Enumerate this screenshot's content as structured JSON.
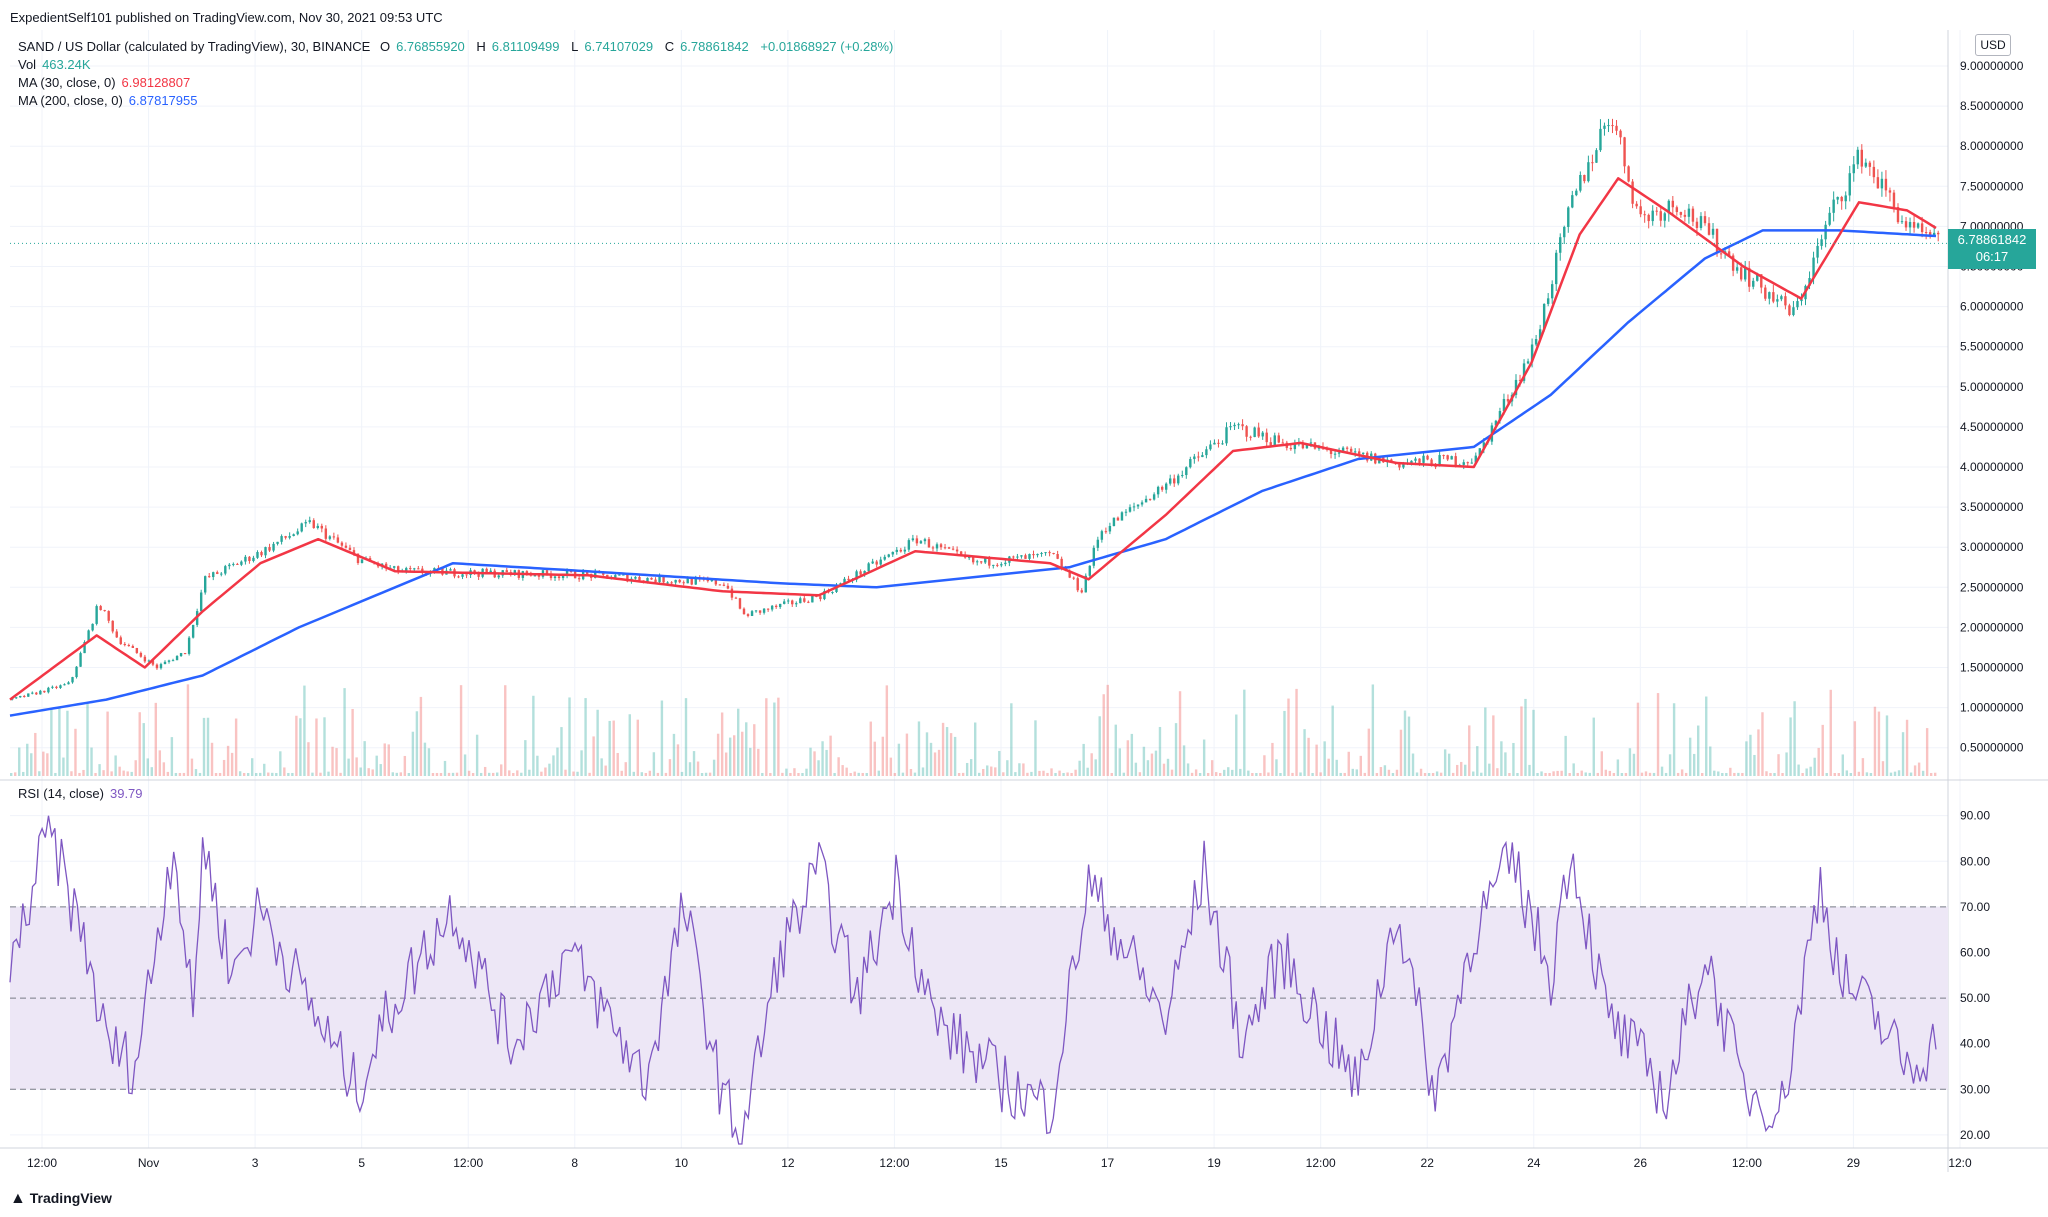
{
  "header": {
    "publisher": "ExpedientSelf101 published on TradingView.com, Nov 30, 2021 09:53 UTC"
  },
  "legend": {
    "symbol": "SAND / US Dollar (calculated by TradingView), 30, BINANCE",
    "open_label": "O",
    "open": "6.76855920",
    "high_label": "H",
    "high": "6.81109499",
    "low_label": "L",
    "low": "6.74107029",
    "close_label": "C",
    "close": "6.78861842",
    "change": "+0.01868927 (+0.28%)",
    "vol_label": "Vol",
    "vol": "463.24K",
    "ma30_label": "MA (30, close, 0)",
    "ma30": "6.98128807",
    "ma200_label": "MA (200, close, 0)",
    "ma200": "6.87817955",
    "rsi_label": "RSI (14, close)",
    "rsi": "39.79"
  },
  "currency": "USD",
  "last_price": {
    "value": "6.78861842",
    "countdown": "06:17"
  },
  "branding": "TradingView",
  "colors": {
    "up": "#26a69a",
    "down": "#ef5350",
    "ma30": "#f23645",
    "ma200": "#2962ff",
    "rsi": "#7e57c2",
    "rsi_band": "#ede7f6",
    "grid": "#f0f3fa"
  },
  "chart_data": [
    {
      "type": "candlestick",
      "title": "SAND / US Dollar (calculated by TradingView), 30, BINANCE",
      "y_ticks": [
        "9.00000000",
        "8.50000000",
        "8.00000000",
        "7.50000000",
        "7.00000000",
        "6.50000000",
        "6.00000000",
        "5.50000000",
        "5.00000000",
        "4.50000000",
        "4.00000000",
        "3.50000000",
        "3.00000000",
        "2.50000000",
        "2.00000000",
        "1.50000000",
        "1.00000000",
        "0.50000000"
      ],
      "ylim": [
        0.5,
        9.0
      ],
      "x_ticks": [
        "12:00",
        "Nov",
        "3",
        "5",
        "12:00",
        "8",
        "10",
        "12",
        "12:00",
        "15",
        "17",
        "19",
        "12:00",
        "22",
        "24",
        "26",
        "12:00",
        "29",
        "12:0"
      ],
      "price_path": [
        [
          0,
          1.1
        ],
        [
          0.03,
          1.3
        ],
        [
          0.045,
          2.3
        ],
        [
          0.055,
          1.85
        ],
        [
          0.075,
          1.5
        ],
        [
          0.09,
          1.7
        ],
        [
          0.1,
          2.6
        ],
        [
          0.13,
          2.95
        ],
        [
          0.155,
          3.3
        ],
        [
          0.18,
          2.85
        ],
        [
          0.2,
          2.7
        ],
        [
          0.3,
          2.65
        ],
        [
          0.37,
          2.55
        ],
        [
          0.38,
          2.15
        ],
        [
          0.42,
          2.4
        ],
        [
          0.47,
          3.1
        ],
        [
          0.5,
          2.8
        ],
        [
          0.54,
          2.9
        ],
        [
          0.555,
          2.45
        ],
        [
          0.565,
          3.2
        ],
        [
          0.6,
          3.8
        ],
        [
          0.635,
          4.5
        ],
        [
          0.66,
          4.3
        ],
        [
          0.72,
          4.05
        ],
        [
          0.76,
          4.1
        ],
        [
          0.79,
          5.5
        ],
        [
          0.81,
          7.3
        ],
        [
          0.83,
          8.45
        ],
        [
          0.845,
          7.1
        ],
        [
          0.865,
          7.3
        ],
        [
          0.9,
          6.4
        ],
        [
          0.925,
          5.9
        ],
        [
          0.945,
          7.2
        ],
        [
          0.96,
          7.9
        ],
        [
          0.985,
          6.95
        ],
        [
          1.0,
          6.79
        ]
      ],
      "ma30_path": [
        [
          0,
          1.1
        ],
        [
          0.045,
          1.9
        ],
        [
          0.07,
          1.5
        ],
        [
          0.1,
          2.2
        ],
        [
          0.13,
          2.8
        ],
        [
          0.16,
          3.1
        ],
        [
          0.2,
          2.7
        ],
        [
          0.3,
          2.65
        ],
        [
          0.37,
          2.45
        ],
        [
          0.42,
          2.4
        ],
        [
          0.47,
          2.95
        ],
        [
          0.54,
          2.8
        ],
        [
          0.56,
          2.6
        ],
        [
          0.6,
          3.4
        ],
        [
          0.635,
          4.2
        ],
        [
          0.67,
          4.3
        ],
        [
          0.72,
          4.05
        ],
        [
          0.76,
          4.0
        ],
        [
          0.79,
          5.3
        ],
        [
          0.815,
          6.9
        ],
        [
          0.835,
          7.6
        ],
        [
          0.86,
          7.2
        ],
        [
          0.9,
          6.5
        ],
        [
          0.93,
          6.1
        ],
        [
          0.96,
          7.3
        ],
        [
          0.985,
          7.2
        ],
        [
          1.0,
          6.98
        ]
      ],
      "ma200_path": [
        [
          0,
          0.9
        ],
        [
          0.05,
          1.1
        ],
        [
          0.1,
          1.4
        ],
        [
          0.15,
          2.0
        ],
        [
          0.2,
          2.5
        ],
        [
          0.23,
          2.8
        ],
        [
          0.3,
          2.7
        ],
        [
          0.4,
          2.55
        ],
        [
          0.45,
          2.5
        ],
        [
          0.55,
          2.75
        ],
        [
          0.6,
          3.1
        ],
        [
          0.65,
          3.7
        ],
        [
          0.7,
          4.1
        ],
        [
          0.76,
          4.25
        ],
        [
          0.8,
          4.9
        ],
        [
          0.84,
          5.8
        ],
        [
          0.88,
          6.6
        ],
        [
          0.91,
          6.95
        ],
        [
          0.95,
          6.95
        ],
        [
          1.0,
          6.88
        ]
      ]
    },
    {
      "type": "line",
      "title": "RSI (14, close)",
      "y_ticks": [
        "90.00",
        "80.00",
        "70.00",
        "60.00",
        "50.00",
        "40.00",
        "30.00",
        "20.00"
      ],
      "ylim": [
        15,
        93
      ],
      "bands": [
        30,
        50,
        70
      ],
      "rsi_path": [
        [
          0,
          55
        ],
        [
          0.02,
          87
        ],
        [
          0.04,
          60
        ],
        [
          0.05,
          40
        ],
        [
          0.065,
          35
        ],
        [
          0.075,
          60
        ],
        [
          0.085,
          85
        ],
        [
          0.095,
          45
        ],
        [
          0.1,
          85
        ],
        [
          0.115,
          55
        ],
        [
          0.13,
          70
        ],
        [
          0.16,
          45
        ],
        [
          0.18,
          30
        ],
        [
          0.2,
          50
        ],
        [
          0.23,
          70
        ],
        [
          0.26,
          40
        ],
        [
          0.29,
          60
        ],
        [
          0.33,
          32
        ],
        [
          0.35,
          70
        ],
        [
          0.37,
          28
        ],
        [
          0.38,
          20
        ],
        [
          0.4,
          60
        ],
        [
          0.42,
          78
        ],
        [
          0.44,
          50
        ],
        [
          0.46,
          76
        ],
        [
          0.48,
          45
        ],
        [
          0.52,
          30
        ],
        [
          0.54,
          26
        ],
        [
          0.56,
          75
        ],
        [
          0.6,
          45
        ],
        [
          0.62,
          78
        ],
        [
          0.64,
          40
        ],
        [
          0.66,
          60
        ],
        [
          0.7,
          30
        ],
        [
          0.72,
          70
        ],
        [
          0.74,
          28
        ],
        [
          0.76,
          65
        ],
        [
          0.78,
          80
        ],
        [
          0.8,
          55
        ],
        [
          0.81,
          83
        ],
        [
          0.83,
          45
        ],
        [
          0.85,
          35
        ],
        [
          0.86,
          28
        ],
        [
          0.88,
          60
        ],
        [
          0.9,
          30
        ],
        [
          0.92,
          26
        ],
        [
          0.94,
          76
        ],
        [
          0.95,
          55
        ],
        [
          0.97,
          45
        ],
        [
          0.985,
          35
        ],
        [
          1.0,
          40
        ]
      ]
    }
  ]
}
